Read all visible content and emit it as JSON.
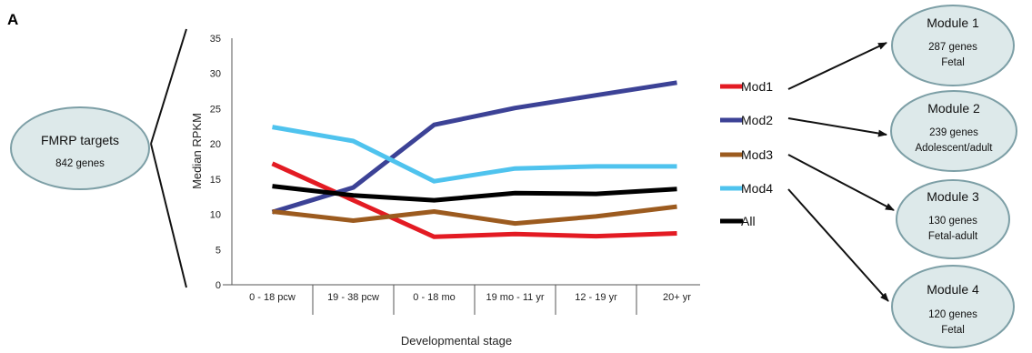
{
  "panel_label": "A",
  "source_node": {
    "title": "FMRP targets",
    "subtitle": "842 genes"
  },
  "modules": [
    {
      "title": "Module 1",
      "line1": "287 genes",
      "line2": "Fetal"
    },
    {
      "title": "Module 2",
      "line1": "239 genes",
      "line2": "Adolescent/adult"
    },
    {
      "title": "Module 3",
      "line1": "130 genes",
      "line2": "Fetal-adult"
    },
    {
      "title": "Module 4",
      "line1": "120 genes",
      "line2": "Fetal"
    }
  ],
  "colors": {
    "Mod1": "#e31b23",
    "Mod2": "#3c4296",
    "Mod3": "#9c5b1f",
    "Mod4": "#4fc3ee",
    "All": "#000000",
    "node_fill": "#dde9ea",
    "node_stroke": "#7d9fa6"
  },
  "chart_data": {
    "type": "line",
    "title": "",
    "xlabel": "Developmental stage",
    "ylabel": "Median RPKM",
    "categories": [
      "0 - 18 pcw",
      "19 - 38 pcw",
      "0 - 18 mo",
      "19 mo  - 11 yr",
      "12 - 19 yr",
      "20+ yr"
    ],
    "ylim": [
      0,
      35
    ],
    "yticks": [
      0,
      5,
      10,
      15,
      20,
      25,
      30,
      35
    ],
    "grid": false,
    "legend_position": "right",
    "series": [
      {
        "name": "Mod1",
        "values": [
          17.2,
          12.0,
          6.8,
          7.2,
          6.9,
          7.3
        ]
      },
      {
        "name": "Mod2",
        "values": [
          10.3,
          13.8,
          22.7,
          25.1,
          26.9,
          28.7
        ]
      },
      {
        "name": "Mod3",
        "values": [
          10.4,
          9.1,
          10.4,
          8.7,
          9.7,
          11.1
        ]
      },
      {
        "name": "Mod4",
        "values": [
          22.4,
          20.4,
          14.7,
          16.5,
          16.8,
          16.8
        ]
      },
      {
        "name": "All",
        "values": [
          14.0,
          12.7,
          12.0,
          13.0,
          12.9,
          13.6
        ]
      }
    ]
  }
}
